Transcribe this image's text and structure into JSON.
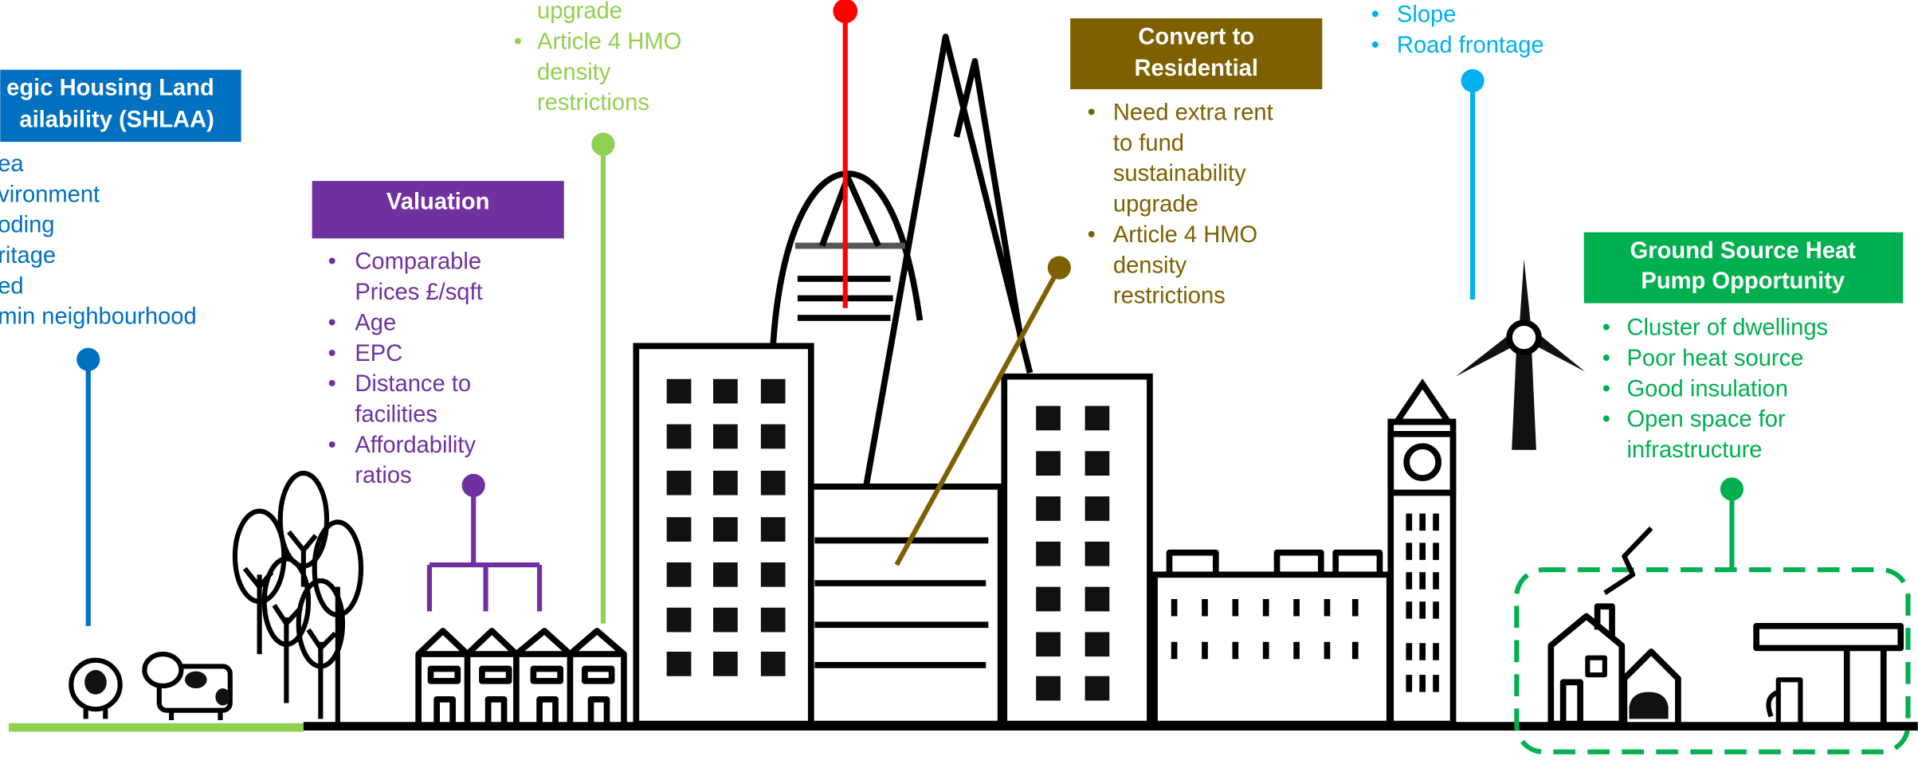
{
  "panels": [
    {
      "color": "#0070c0",
      "title": [
        "egic Housing Land",
        "ailability (SHLAA)"
      ],
      "items": [
        [
          "ea"
        ],
        [
          "vironment"
        ],
        [
          "oding"
        ],
        [
          "ritage"
        ],
        [
          "ed"
        ],
        [
          "min neighbourhood"
        ]
      ]
    },
    {
      "color": "#92d050",
      "lead": [
        "upgrade"
      ],
      "items": [
        [
          "Article 4 HMO",
          "density",
          "restrictions"
        ]
      ]
    },
    {
      "color": "#7030a0",
      "title": [
        "Valuation"
      ],
      "items": [
        [
          "Comparable",
          "Prices £/sqft"
        ],
        [
          "Age"
        ],
        [
          "EPC"
        ],
        [
          "Distance to",
          "facilities"
        ],
        [
          "Affordability",
          "ratios"
        ]
      ]
    },
    {
      "color": "#7f6000",
      "title": [
        "Convert to",
        "Residential"
      ],
      "items": [
        [
          "Need extra rent",
          "to fund",
          "sustainability",
          "upgrade"
        ],
        [
          "Article 4 HMO",
          "density",
          "restrictions"
        ]
      ]
    },
    {
      "color": "#00b0f0",
      "items": [
        [
          "Slope"
        ],
        [
          "Road frontage"
        ]
      ]
    },
    {
      "color": "#00b050",
      "title": [
        "Ground Source Heat",
        "Pump Opportunity"
      ],
      "items": [
        [
          "Cluster of dwellings"
        ],
        [
          "Poor heat source"
        ],
        [
          "Good insulation"
        ],
        [
          "Open space for",
          "infrastructure"
        ]
      ]
    }
  ]
}
